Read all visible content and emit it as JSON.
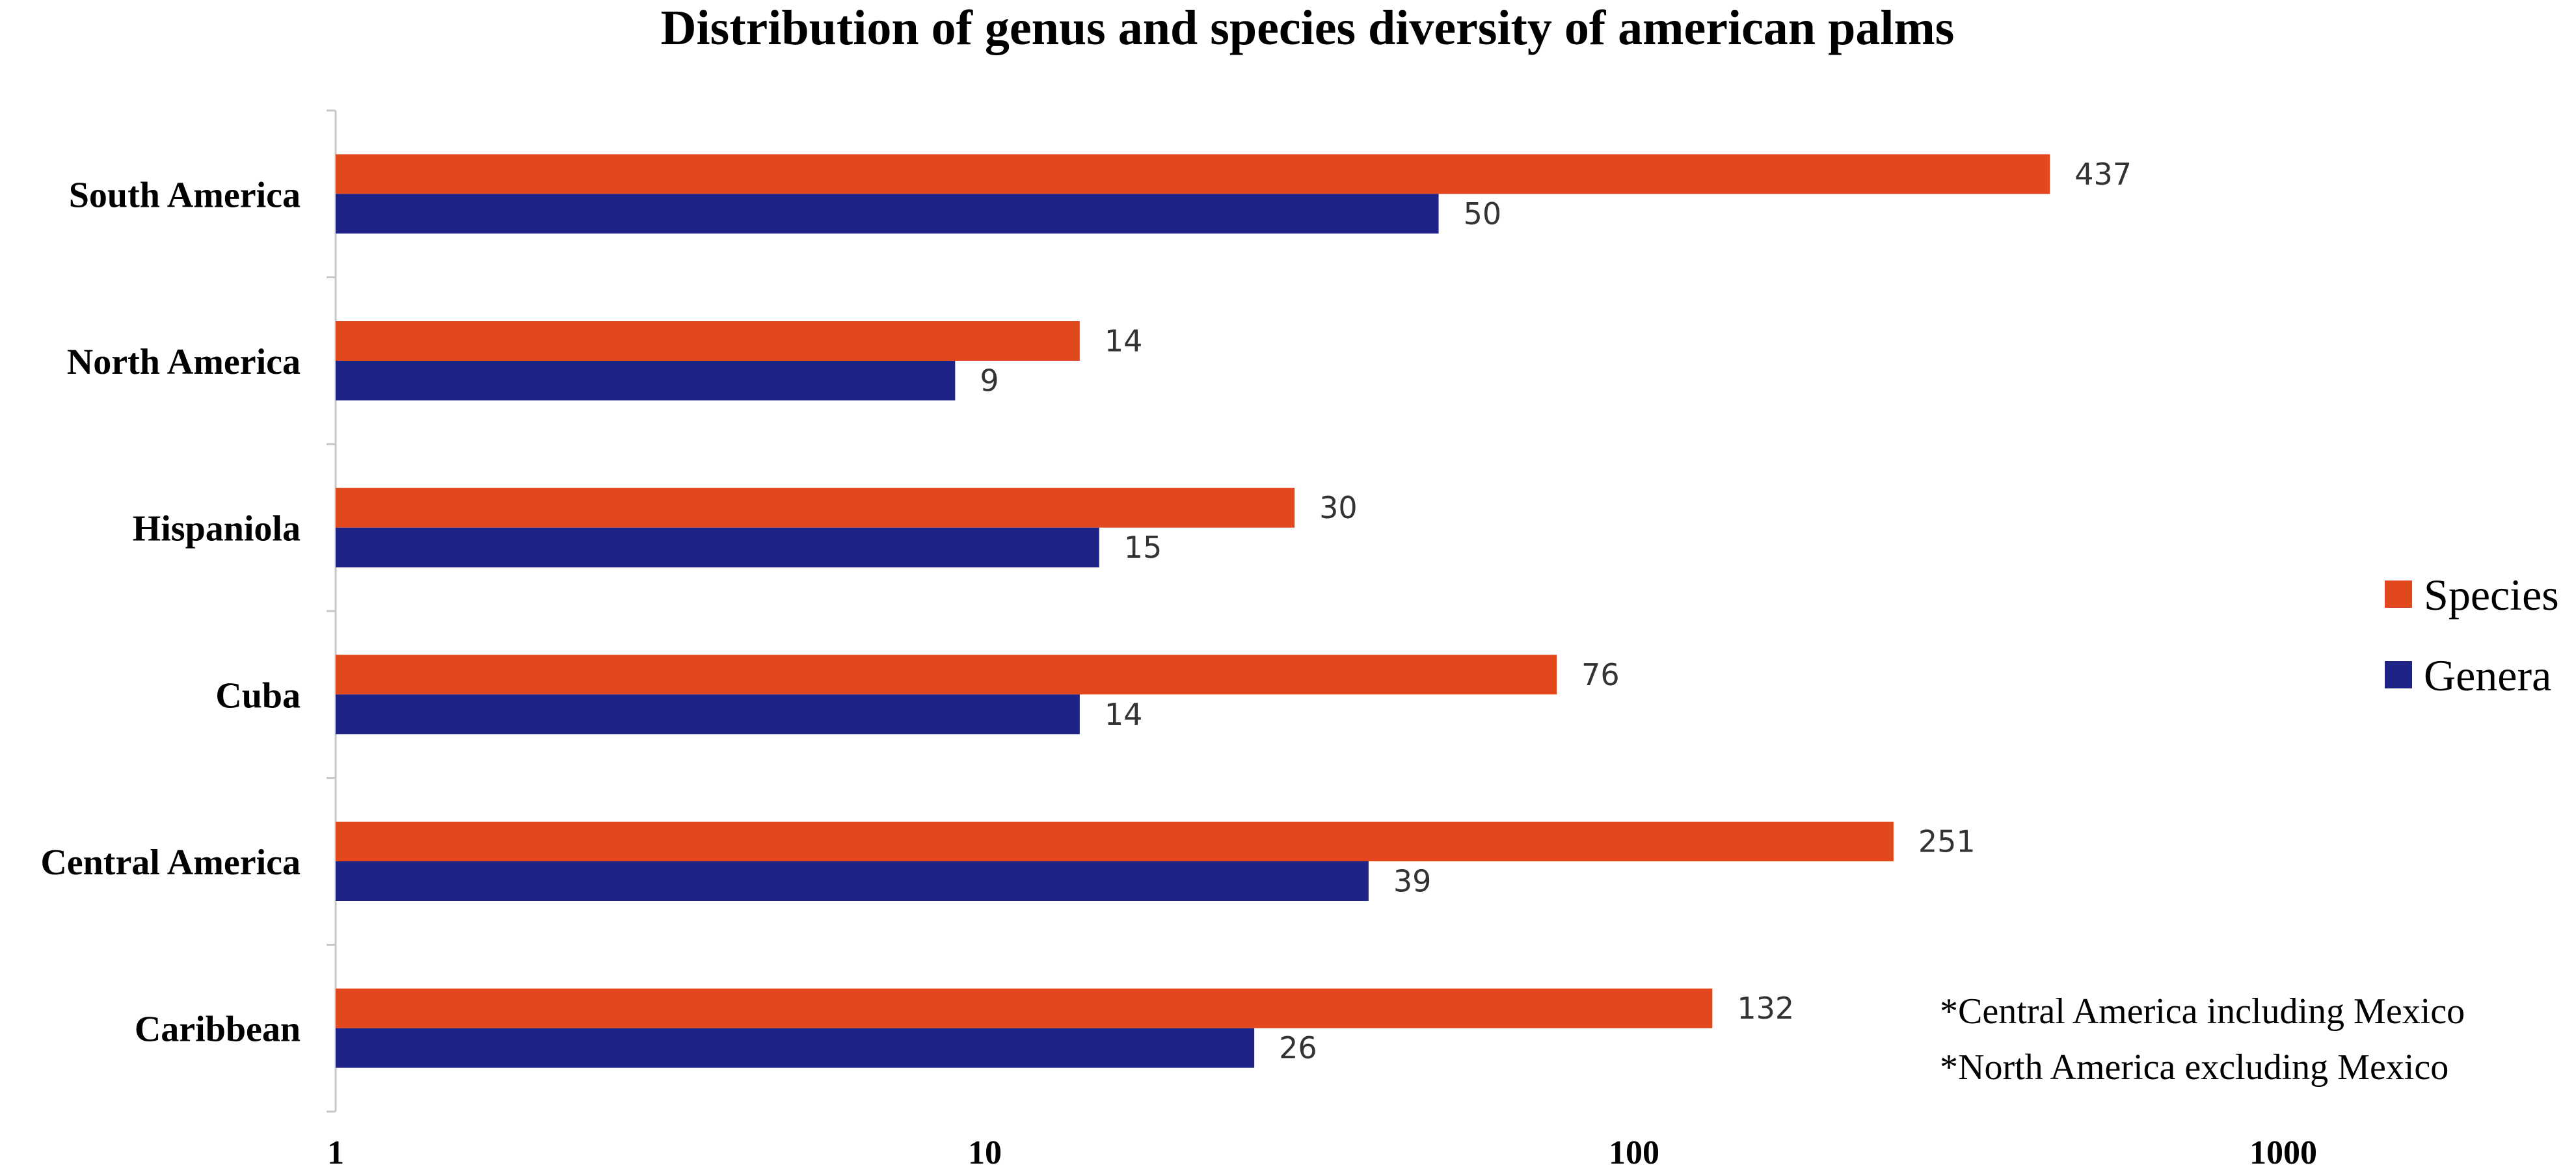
{
  "chart_data": {
    "type": "bar",
    "orientation": "horizontal",
    "title": "Distribution of genus and species diversity of american palms",
    "xscale": "log",
    "xlim": [
      1,
      1000
    ],
    "xticks": [
      "1",
      "10",
      "100",
      "1000"
    ],
    "categories": [
      "South America",
      "North America",
      "Hispaniola",
      "Cuba",
      "Central America",
      "Caribbean"
    ],
    "series": [
      {
        "name": "Species",
        "color": "#E2481E",
        "values": [
          437,
          14,
          30,
          76,
          251,
          132
        ]
      },
      {
        "name": "Genera",
        "color": "#1F2385",
        "values": [
          50,
          9,
          15,
          14,
          39,
          26
        ]
      }
    ],
    "legend": {
      "position": "right",
      "entries": [
        "Species",
        "Genera"
      ]
    },
    "annotations": [
      "*Central America including Mexico",
      "*North America excluding Mexico"
    ],
    "grid": false
  }
}
